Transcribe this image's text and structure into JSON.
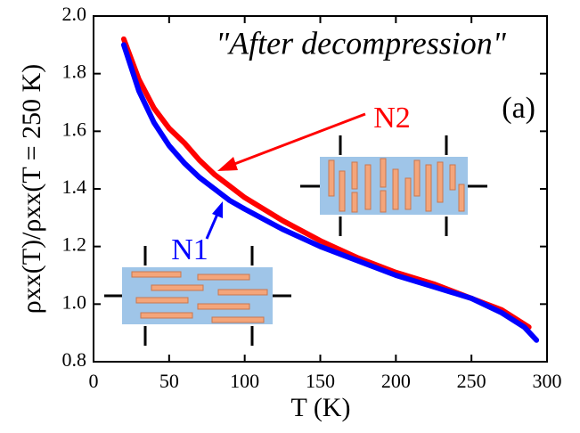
{
  "chart_data": {
    "type": "line",
    "annotation_title": "\"After decompression\"",
    "panel_label": "(a)",
    "x_label": "T (K)",
    "y_label": "ρxx(T)/ρxx(T = 250 K)",
    "xlim": [
      0,
      300
    ],
    "xticks": [
      0,
      50,
      100,
      150,
      200,
      250,
      300
    ],
    "ylim": [
      0.8,
      2.0
    ],
    "yticks": [
      {
        "value": 0.8,
        "label": "0.8"
      },
      {
        "value": 1.0,
        "label": "1.0"
      },
      {
        "value": 1.2,
        "label": "1.2"
      },
      {
        "value": 1.4,
        "label": "1.4"
      },
      {
        "value": 1.6,
        "label": "1.6"
      },
      {
        "value": 1.8,
        "label": "1.8"
      },
      {
        "value": 2.0,
        "label": "2.0"
      }
    ],
    "series": [
      {
        "name": "N1",
        "color": "#0000ff",
        "x": [
          20,
          30,
          40,
          50,
          60,
          70,
          80,
          90,
          100,
          125,
          150,
          175,
          200,
          225,
          250,
          270,
          285,
          293
        ],
        "values": [
          1.9,
          1.74,
          1.63,
          1.55,
          1.49,
          1.44,
          1.4,
          1.36,
          1.33,
          1.26,
          1.2,
          1.15,
          1.1,
          1.06,
          1.02,
          0.97,
          0.92,
          0.875
        ]
      },
      {
        "name": "N2",
        "color": "#ff0000",
        "x": [
          20,
          30,
          40,
          50,
          60,
          70,
          80,
          90,
          100,
          125,
          150,
          175,
          200,
          225,
          250,
          270,
          288
        ],
        "values": [
          1.92,
          1.78,
          1.68,
          1.61,
          1.56,
          1.5,
          1.45,
          1.41,
          1.37,
          1.29,
          1.22,
          1.16,
          1.11,
          1.07,
          1.02,
          0.98,
          0.92
        ]
      }
    ]
  }
}
